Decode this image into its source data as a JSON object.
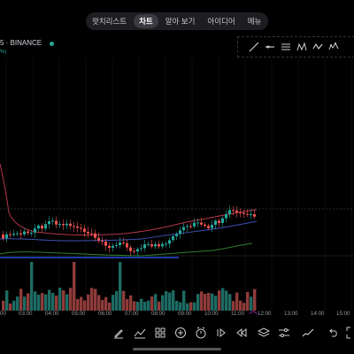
{
  "tabs": [
    {
      "label": "왓치리스트",
      "active": false
    },
    {
      "label": "차트",
      "active": true
    },
    {
      "label": "알아 보기",
      "active": false
    },
    {
      "label": "아이디어",
      "active": false
    },
    {
      "label": "메뉴",
      "active": false
    }
  ],
  "symbol": {
    "text": "5 · BINANCE",
    "status_color": "#26a69a",
    "change_text": "%)"
  },
  "time_axis": [
    "00",
    "03:00",
    "04:00",
    "05:00",
    "06:00",
    "07:00",
    "08:00",
    "09:00",
    "10:00",
    "11:00",
    "12:00",
    "13:00",
    "14:00",
    "15:00"
  ],
  "drawing_toolbar": [
    "trend-line-icon",
    "horizontal-ray-icon",
    "parallel-channel-icon",
    "pattern-icon",
    "zigzag-icon",
    "elliott-wave-icon"
  ],
  "bottom_toolbar": [
    "pencil-icon",
    "indicators-icon",
    "templates-icon",
    "add-icon",
    "alert-icon",
    "replay-icon",
    "rewind-icon",
    "layers-icon",
    "settings-sliders-icon",
    "chart-type-icon",
    "undo-icon",
    "fullscreen-icon"
  ],
  "colors": {
    "up": "#26a69a",
    "down": "#ef5350",
    "upper_band": "#b2374a",
    "lower_band": "#2e7d32",
    "ma": "#3f51b5"
  }
}
